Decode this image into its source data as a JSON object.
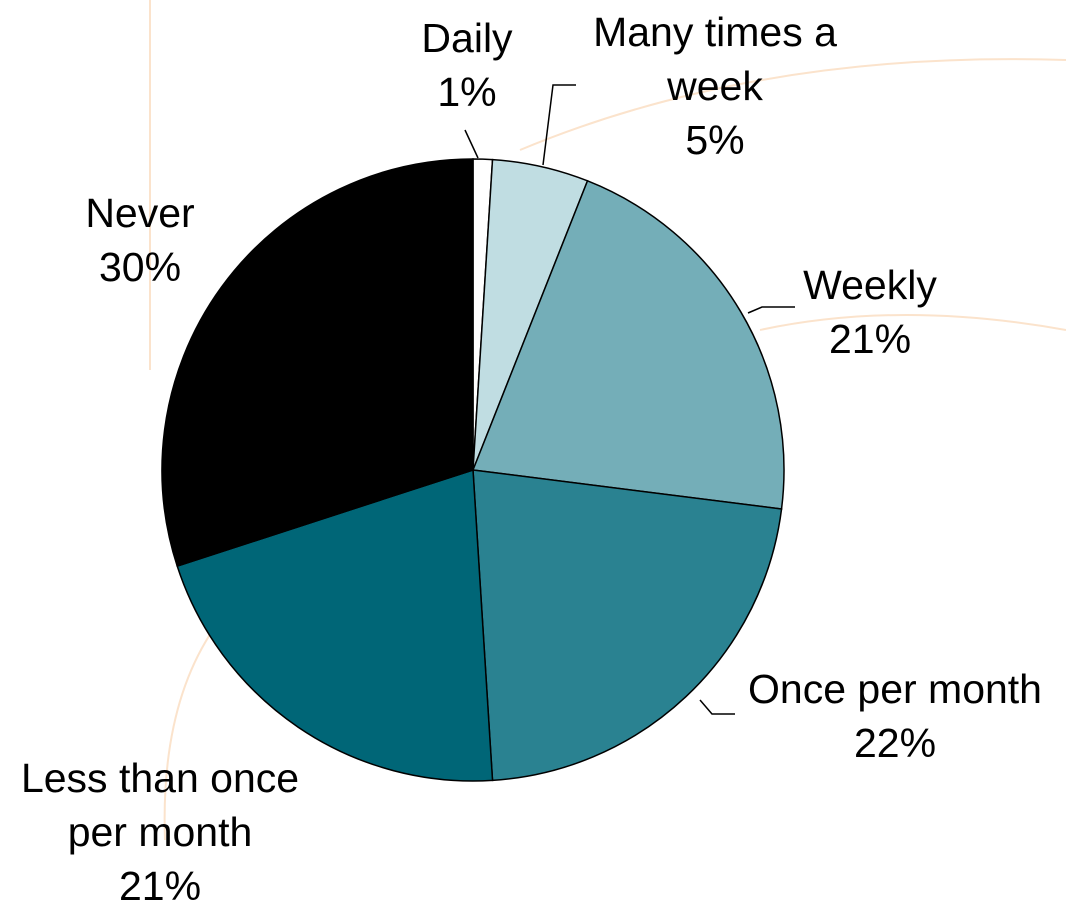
{
  "chart_data": {
    "type": "pie",
    "categories": [
      "Daily",
      "Many times a week",
      "Weekly",
      "Once per month",
      "Less than once per month",
      "Never"
    ],
    "values": [
      1,
      5,
      21,
      22,
      21,
      30
    ],
    "value_labels": [
      "1%",
      "5%",
      "21%",
      "22%",
      "21%",
      "30%"
    ],
    "colors": [
      "#ffffff",
      "#c0dde2",
      "#74aeb8",
      "#2a8291",
      "#006677",
      "#000000"
    ]
  }
}
